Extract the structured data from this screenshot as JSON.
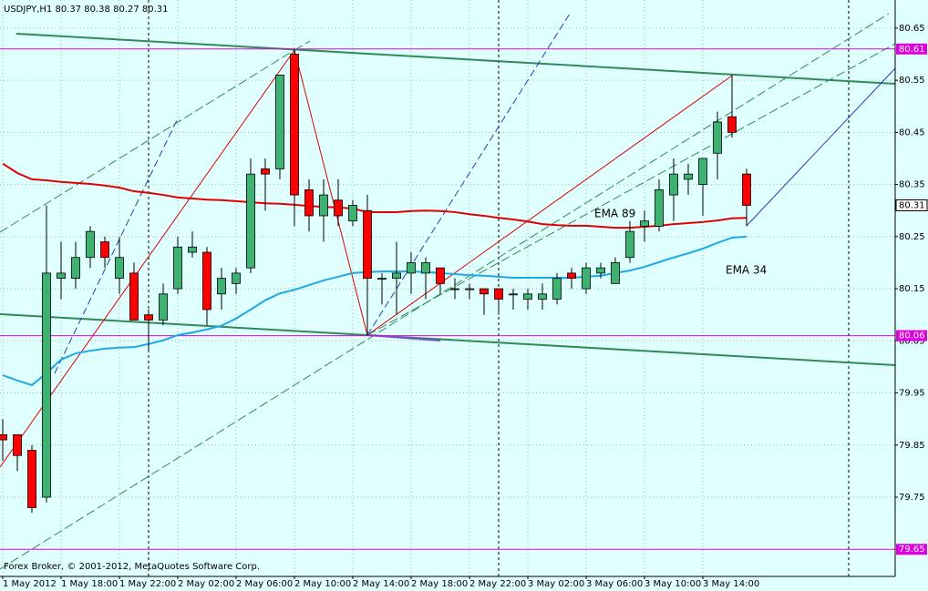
{
  "chart_data": {
    "type": "candlestick",
    "title": "USDJPY,H1  80.37 80.38 80.27 80.31",
    "footer": "Forex Broker, © 2001-2012, MetaQuotes Software Corp.",
    "categories": [
      "1 May 2012",
      null,
      null,
      null,
      "1 May 18:00",
      null,
      null,
      null,
      "1 May 22:00",
      null,
      null,
      null,
      "2 May 02:00",
      null,
      null,
      null,
      "2 May 06:00",
      null,
      null,
      null,
      "2 May 10:00",
      null,
      null,
      null,
      "2 May 14:00",
      null,
      null,
      null,
      "2 May 18:00",
      null,
      null,
      null,
      "2 May 22:00",
      null,
      null,
      null,
      "3 May 02:00",
      null,
      null,
      null,
      "3 May 06:00",
      null,
      null,
      null,
      "3 May 10:00",
      null,
      null,
      null,
      "3 May 14:00",
      null,
      null,
      null
    ],
    "open": [
      79.87,
      79.87,
      79.84,
      79.75,
      80.17,
      80.17,
      80.21,
      80.24,
      80.17,
      80.18,
      80.1,
      80.09,
      80.15,
      80.22,
      80.22,
      80.14,
      80.16,
      80.19,
      80.38,
      80.38,
      80.6,
      80.34,
      80.29,
      80.32,
      80.28,
      80.3,
      80.17,
      80.17,
      80.18,
      80.18,
      80.19,
      80.15,
      80.15,
      80.15,
      80.15,
      80.14,
      80.13,
      80.13,
      80.13,
      80.18,
      80.15,
      80.18,
      80.16,
      80.21,
      80.27,
      80.27,
      80.33,
      80.36,
      80.35,
      80.41,
      80.48,
      80.37
    ],
    "high": [
      79.9,
      79.87,
      79.85,
      80.31,
      80.24,
      80.24,
      80.27,
      80.25,
      80.25,
      80.2,
      80.11,
      80.16,
      80.25,
      80.26,
      80.23,
      80.19,
      80.19,
      80.4,
      80.4,
      80.56,
      80.61,
      80.36,
      80.36,
      80.36,
      80.32,
      80.33,
      80.18,
      80.24,
      80.22,
      80.21,
      80.19,
      80.17,
      80.16,
      80.15,
      80.15,
      80.15,
      80.15,
      80.16,
      80.18,
      80.19,
      80.2,
      80.2,
      80.21,
      80.28,
      80.3,
      80.36,
      80.4,
      80.39,
      80.4,
      80.49,
      80.56,
      80.38
    ],
    "low": [
      79.82,
      79.8,
      79.72,
      79.74,
      80.13,
      80.15,
      80.19,
      80.19,
      80.14,
      80.09,
      80.03,
      80.08,
      80.14,
      80.21,
      80.08,
      80.11,
      80.14,
      80.18,
      80.3,
      80.36,
      80.27,
      80.26,
      80.24,
      80.27,
      80.27,
      80.06,
      80.12,
      80.1,
      80.14,
      80.13,
      80.14,
      80.13,
      80.13,
      80.1,
      80.1,
      80.11,
      80.11,
      80.11,
      80.12,
      80.15,
      80.14,
      80.17,
      80.16,
      80.2,
      80.24,
      80.26,
      80.28,
      80.33,
      80.29,
      80.36,
      80.44,
      80.27
    ],
    "close": [
      79.86,
      79.83,
      79.73,
      80.18,
      80.18,
      80.21,
      80.26,
      80.21,
      80.21,
      80.09,
      80.09,
      80.14,
      80.23,
      80.23,
      80.11,
      80.17,
      80.18,
      80.37,
      80.37,
      80.56,
      80.33,
      80.29,
      80.33,
      80.29,
      80.31,
      80.17,
      80.17,
      80.18,
      80.2,
      80.2,
      80.16,
      80.15,
      80.15,
      80.14,
      80.13,
      80.14,
      80.14,
      80.14,
      80.17,
      80.17,
      80.19,
      80.19,
      80.2,
      80.26,
      80.28,
      80.34,
      80.37,
      80.37,
      80.4,
      80.47,
      80.45,
      80.31
    ],
    "up_color": "#3cb371",
    "down_color": "#ff0000",
    "series": [
      {
        "name": "EMA 89",
        "color": "#e00000",
        "values": [
          80.39,
          80.372,
          80.36,
          80.358,
          80.355,
          80.353,
          80.351,
          80.348,
          80.344,
          80.337,
          80.334,
          80.33,
          80.325,
          80.323,
          80.321,
          80.32,
          80.318,
          80.316,
          80.314,
          80.313,
          80.311,
          80.309,
          80.307,
          80.306,
          80.304,
          80.297,
          80.297,
          80.297,
          80.299,
          80.3,
          80.299,
          80.297,
          80.293,
          80.29,
          80.286,
          80.283,
          80.279,
          80.274,
          80.272,
          80.271,
          80.271,
          80.269,
          80.267,
          80.267,
          80.269,
          80.271,
          80.274,
          80.276,
          80.278,
          80.281,
          80.285,
          80.286
        ]
      },
      {
        "name": "EMA 34",
        "color": "#1ea8e6",
        "values": [
          79.984,
          79.974,
          79.965,
          79.988,
          80.014,
          80.026,
          80.031,
          80.035,
          80.037,
          80.038,
          80.044,
          80.051,
          80.061,
          80.066,
          80.072,
          80.079,
          80.093,
          80.11,
          80.128,
          80.141,
          80.148,
          80.157,
          80.166,
          80.173,
          80.18,
          80.182,
          80.183,
          80.183,
          80.183,
          80.182,
          80.18,
          80.178,
          80.176,
          80.175,
          80.173,
          80.171,
          80.171,
          80.171,
          80.171,
          80.171,
          80.173,
          80.175,
          80.18,
          80.185,
          80.192,
          80.201,
          80.21,
          80.218,
          80.227,
          80.238,
          80.248,
          80.25
        ]
      }
    ],
    "ylim": [
      79.598,
      80.704
    ],
    "yticks": [
      80.65,
      80.55,
      80.45,
      80.35,
      80.25,
      80.15,
      80.05,
      79.95,
      79.85,
      79.75
    ],
    "grid": true,
    "hlines": [
      {
        "value": 80.61,
        "color": "#e000e0"
      },
      {
        "value": 80.06,
        "color": "#e000e0"
      },
      {
        "value": 79.65,
        "color": "#e000e0"
      }
    ],
    "last_price": 80.31
  }
}
